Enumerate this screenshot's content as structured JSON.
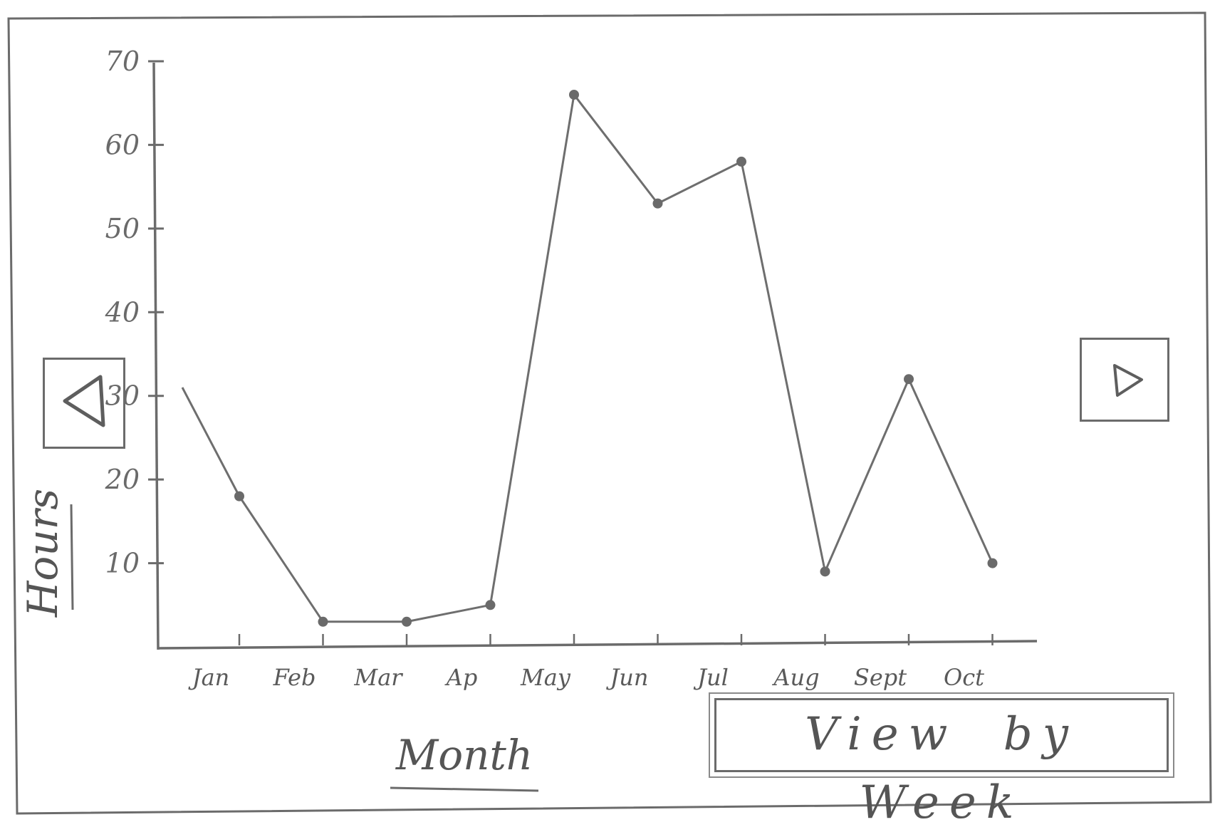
{
  "chart_data": {
    "type": "line",
    "categories": [
      "Jan",
      "Feb",
      "Mar",
      "Ap",
      "May",
      "Jun",
      "Jul",
      "Aug",
      "Sept",
      "Oct"
    ],
    "series": [
      {
        "values": [
          18,
          3,
          3,
          5,
          66,
          53,
          58,
          9,
          32,
          10
        ]
      }
    ],
    "line_start_value": 31,
    "xlabel": "Month",
    "ylabel": "Hours",
    "ylim": [
      0,
      70
    ],
    "yticks": [
      10,
      20,
      30,
      40,
      50,
      60,
      70
    ],
    "grid": false,
    "legend": "none",
    "line_color": "#6e6e6e"
  },
  "controls": {
    "view_by_week_label": "View by Week",
    "prev_icon": "triangle-left-icon",
    "next_icon": "triangle-right-icon"
  }
}
